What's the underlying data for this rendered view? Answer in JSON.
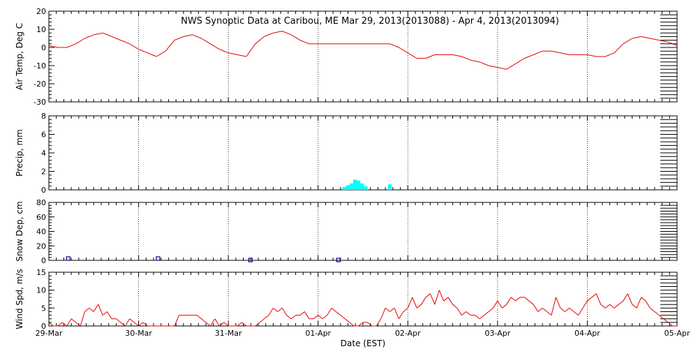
{
  "chart_data": {
    "title": "NWS Synoptic Data at Caribou, ME   Mar 29, 2013(2013088) - Apr  4, 2013(2013094)",
    "xlabel": "Date (EST)",
    "x_range": [
      0,
      7
    ],
    "x_unit": "days from 29-Mar",
    "x_tick_labels": [
      "29-Mar",
      "30-Mar",
      "31-Mar",
      "01-Apr",
      "02-Apr",
      "03-Apr",
      "04-Apr",
      "05-Apr"
    ],
    "grid": "dotted vertical lines at day boundaries",
    "panels": [
      {
        "id": "air_temp",
        "type": "line",
        "ylabel": "Air Temp, Deg C",
        "ylim": [
          -30,
          20
        ],
        "yticks": [
          -30,
          -20,
          -10,
          0,
          10,
          20
        ],
        "color": "#e00000",
        "x": [
          0,
          0.1,
          0.2,
          0.3,
          0.4,
          0.5,
          0.6,
          0.7,
          0.8,
          0.9,
          1.0,
          1.1,
          1.2,
          1.3,
          1.4,
          1.5,
          1.6,
          1.7,
          1.8,
          1.9,
          2.0,
          2.1,
          2.2,
          2.3,
          2.4,
          2.5,
          2.6,
          2.7,
          2.8,
          2.9,
          3.0,
          3.1,
          3.2,
          3.3,
          3.4,
          3.5,
          3.6,
          3.7,
          3.8,
          3.9,
          4.0,
          4.1,
          4.2,
          4.3,
          4.4,
          4.5,
          4.6,
          4.7,
          4.8,
          4.9,
          5.0,
          5.1,
          5.2,
          5.3,
          5.4,
          5.5,
          5.6,
          5.7,
          5.8,
          5.9,
          6.0,
          6.1,
          6.2,
          6.3,
          6.4,
          6.5,
          6.6,
          6.7,
          6.8,
          6.9,
          7.0
        ],
        "values": [
          1,
          0,
          0,
          2,
          5,
          7,
          8,
          6,
          4,
          2,
          -1,
          -3,
          -5,
          -2,
          4,
          6,
          7,
          5,
          2,
          -1,
          -3,
          -4,
          -5,
          2,
          6,
          8,
          9,
          7,
          4,
          2,
          2,
          2,
          2,
          2,
          2,
          2,
          2,
          2,
          2,
          0,
          -3,
          -6,
          -6,
          -4,
          -4,
          -4,
          -5,
          -7,
          -8,
          -10,
          -11,
          -12,
          -9,
          -6,
          -4,
          -2,
          -2,
          -3,
          -4,
          -4,
          -4,
          -5,
          -5,
          -3,
          2,
          5,
          6,
          5,
          4,
          3,
          1
        ]
      },
      {
        "id": "precip",
        "type": "bar",
        "ylabel": "Precip, mm",
        "ylim": [
          0,
          8
        ],
        "yticks": [
          0,
          2,
          4,
          6,
          8
        ],
        "color": "#00ffff",
        "bar_width": 0.04,
        "x": [
          3.29,
          3.33,
          3.37,
          3.41,
          3.45,
          3.49,
          3.53,
          3.8,
          4.8
        ],
        "values": [
          0.3,
          0.5,
          0.7,
          1.1,
          1.0,
          0.7,
          0.4,
          0.6,
          0.1
        ]
      },
      {
        "id": "snow_depth",
        "type": "scatter",
        "ylabel": "Snow Dep, cm",
        "ylim": [
          0,
          80
        ],
        "yticks": [
          0,
          20,
          40,
          60,
          80
        ],
        "color": "#00008b",
        "marker": "hollow square",
        "x": [
          0.22,
          1.22,
          2.25,
          3.23
        ],
        "values": [
          2,
          2,
          0,
          0
        ]
      },
      {
        "id": "wind_speed",
        "type": "line",
        "ylabel": "Wind Spd, m/s",
        "ylim": [
          0,
          15
        ],
        "yticks": [
          0,
          5,
          10,
          15
        ],
        "color": "#e00000",
        "x": [
          0,
          0.05,
          0.1,
          0.15,
          0.2,
          0.25,
          0.3,
          0.35,
          0.4,
          0.45,
          0.5,
          0.55,
          0.6,
          0.65,
          0.7,
          0.75,
          0.8,
          0.85,
          0.9,
          0.95,
          1.0,
          1.05,
          1.1,
          1.15,
          1.2,
          1.25,
          1.3,
          1.35,
          1.4,
          1.45,
          1.5,
          1.55,
          1.6,
          1.65,
          1.7,
          1.75,
          1.8,
          1.85,
          1.9,
          1.95,
          2.0,
          2.05,
          2.1,
          2.15,
          2.2,
          2.25,
          2.3,
          2.35,
          2.4,
          2.45,
          2.5,
          2.55,
          2.6,
          2.65,
          2.7,
          2.75,
          2.8,
          2.85,
          2.9,
          2.95,
          3.0,
          3.05,
          3.1,
          3.15,
          3.2,
          3.25,
          3.3,
          3.35,
          3.4,
          3.45,
          3.5,
          3.55,
          3.6,
          3.65,
          3.7,
          3.75,
          3.8,
          3.85,
          3.9,
          3.95,
          4.0,
          4.05,
          4.1,
          4.15,
          4.2,
          4.25,
          4.3,
          4.35,
          4.4,
          4.45,
          4.5,
          4.55,
          4.6,
          4.65,
          4.7,
          4.75,
          4.8,
          4.85,
          4.9,
          4.95,
          5.0,
          5.05,
          5.1,
          5.15,
          5.2,
          5.25,
          5.3,
          5.35,
          5.4,
          5.45,
          5.5,
          5.55,
          5.6,
          5.65,
          5.7,
          5.75,
          5.8,
          5.85,
          5.9,
          5.95,
          6.0,
          6.05,
          6.1,
          6.15,
          6.2,
          6.25,
          6.3,
          6.35,
          6.4,
          6.45,
          6.5,
          6.55,
          6.6,
          6.65,
          6.7,
          6.75,
          6.8,
          6.85,
          6.9,
          6.95,
          7.0
        ],
        "values": [
          1,
          0,
          0,
          1,
          0,
          2,
          1,
          0,
          4,
          5,
          4,
          6,
          3,
          4,
          2,
          2,
          1,
          0,
          2,
          1,
          0,
          1,
          0,
          0,
          0,
          0,
          0,
          0,
          0,
          3,
          3,
          3,
          3,
          3,
          2,
          1,
          0,
          2,
          0,
          1,
          0,
          0,
          0,
          1,
          0,
          0,
          0,
          1,
          2,
          3,
          5,
          4,
          5,
          3,
          2,
          3,
          3,
          4,
          2,
          2,
          3,
          2,
          3,
          5,
          4,
          3,
          2,
          1,
          0,
          0,
          1,
          1,
          0,
          0,
          2,
          5,
          4,
          5,
          2,
          4,
          5,
          8,
          5,
          6,
          8,
          9,
          6,
          10,
          7,
          8,
          6,
          5,
          3,
          4,
          3,
          3,
          2,
          3,
          4,
          5,
          7,
          5,
          6,
          8,
          7,
          8,
          8,
          7,
          6,
          4,
          5,
          4,
          3,
          8,
          5,
          4,
          5,
          4,
          3,
          5,
          7,
          8,
          9,
          6,
          5,
          6,
          5,
          6,
          7,
          9,
          6,
          5,
          8,
          7,
          5,
          4,
          3,
          2,
          1,
          0,
          0
        ]
      }
    ]
  }
}
